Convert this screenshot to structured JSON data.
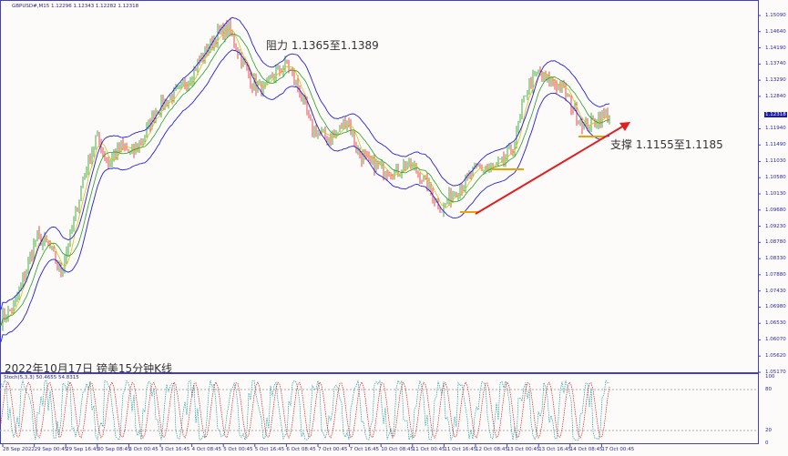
{
  "header": {
    "symbol_line": "GBPUSD#,M15  1.12296 1.12343 1.12282 1.12318"
  },
  "price_axis": {
    "labels": [
      "1.15090",
      "1.14640",
      "1.14190",
      "1.13740",
      "1.13290",
      "1.12840",
      "1.11940",
      "1.11490",
      "1.11030",
      "1.10580",
      "1.10130",
      "1.09680",
      "1.09230",
      "1.08780",
      "1.08330",
      "1.07880",
      "1.07430",
      "1.06980",
      "1.06530",
      "1.06070",
      "1.05620",
      "1.05170"
    ],
    "current_price": "1.12318",
    "range": [
      1.0517,
      1.1509
    ]
  },
  "stoch": {
    "label": "Stoch(5,3,3) 50.4655 54.8315",
    "axis": [
      "100",
      "80",
      "20",
      "0"
    ]
  },
  "time_axis": [
    "28 Sep 2022",
    "29 Sep 00:45",
    "29 Sep 16:45",
    "30 Sep 08:45",
    "3 Oct 00:45",
    "3 Oct 16:45",
    "4 Oct 08:45",
    "5 Oct 00:45",
    "5 Oct 16:45",
    "6 Oct 08:45",
    "7 Oct 00:45",
    "7 Oct 16:45",
    "10 Oct 08:45",
    "11 Oct 00:45",
    "11 Oct 16:45",
    "12 Oct 08:45",
    "13 Oct 00:45",
    "13 Oct 16:45",
    "14 Oct 08:45",
    "17 Oct 00:45"
  ],
  "annotations": {
    "resistance": "阻力 1.1365至1.1389",
    "support": "支撑 1.1155至1.1185",
    "caption": "2022年10月17日 镑美15分钟K线"
  },
  "price_path": [
    1.0666,
    1.0692,
    1.0793,
    1.0894,
    1.0869,
    1.0793,
    1.0919,
    1.1071,
    1.1173,
    1.1097,
    1.1147,
    1.1122,
    1.1173,
    1.1248,
    1.1274,
    1.1299,
    1.135,
    1.14,
    1.1451,
    1.1476,
    1.14,
    1.1324,
    1.1299,
    1.135,
    1.1375,
    1.1299,
    1.1198,
    1.1173,
    1.1173,
    1.1223,
    1.1122,
    1.1097,
    1.1084,
    1.1071,
    1.1097,
    1.1071,
    1.1021,
    1.097,
    1.1021,
    1.1046,
    1.1084,
    1.1084,
    1.1097,
    1.1147,
    1.1299,
    1.135,
    1.1324,
    1.1312,
    1.1248,
    1.1198,
    1.1223,
    1.1236
  ],
  "colors": {
    "band": "#2020e0",
    "bull": "#1a9a1a",
    "bear": "#e02020",
    "trend": "#e02020",
    "zone": "#f0a000",
    "axis": "#4040c0"
  }
}
